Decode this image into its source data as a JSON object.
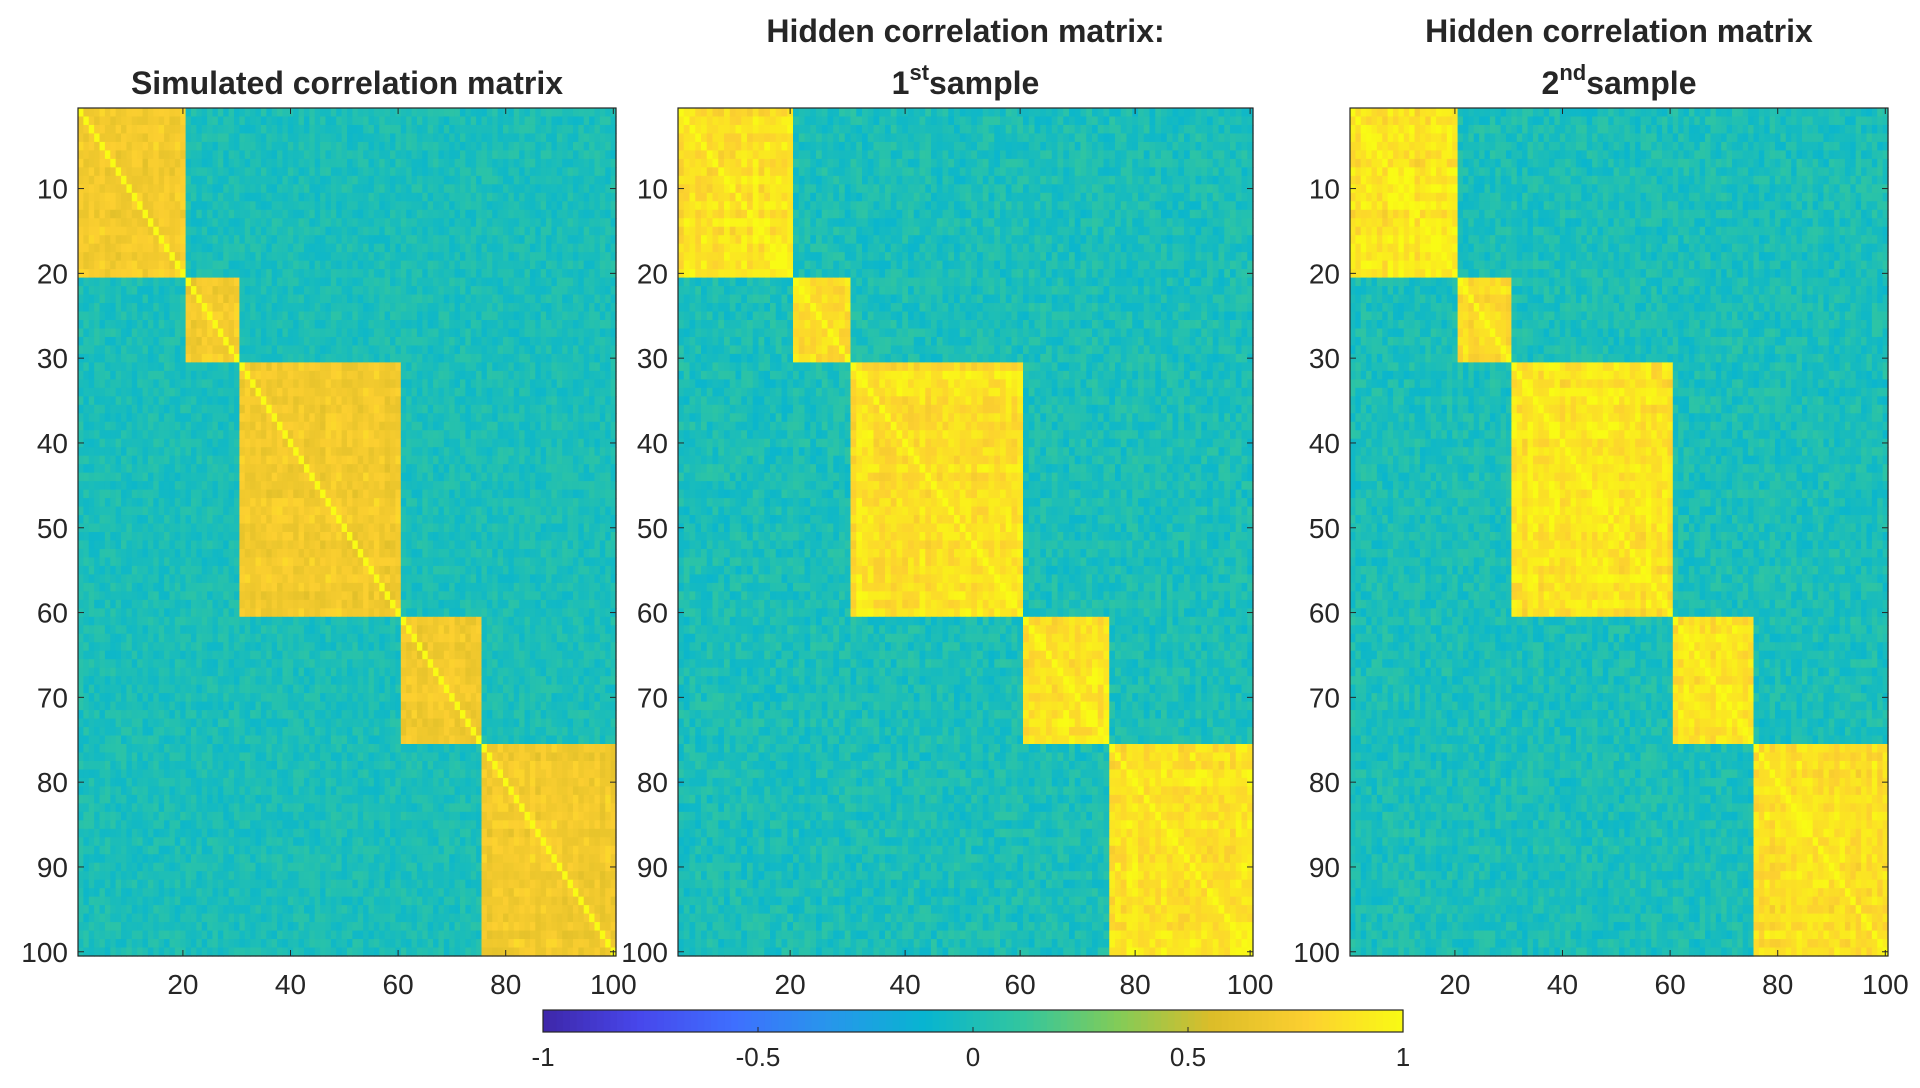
{
  "chart_data": {
    "type": "heatmap",
    "colormap": "parula",
    "matrix_size": 100,
    "clim": [
      -1,
      1
    ],
    "panels": [
      {
        "id": "simulated",
        "title_lines": [
          {
            "text": "Simulated correlation matrix"
          }
        ],
        "ytick_labels": [
          "10",
          "20",
          "30",
          "40",
          "50",
          "60",
          "70",
          "80",
          "90",
          "100"
        ],
        "xtick_labels": [
          "20",
          "40",
          "60",
          "80",
          "100"
        ],
        "blocks": [
          [
            1,
            20
          ],
          [
            21,
            30
          ],
          [
            31,
            60
          ],
          [
            61,
            75
          ],
          [
            76,
            100
          ]
        ],
        "block_strength": 0.72,
        "noise": 0.1
      },
      {
        "id": "hidden-1",
        "title_lines": [
          {
            "text": "Hidden correlation matrix:"
          },
          {
            "prefix": "1",
            "superscript": "st",
            "suffix": "sample"
          }
        ],
        "ytick_labels": [
          "10",
          "20",
          "30",
          "40",
          "50",
          "60",
          "70",
          "80",
          "90",
          "100"
        ],
        "xtick_labels": [
          "20",
          "40",
          "60",
          "80",
          "100"
        ],
        "blocks": [
          [
            1,
            20
          ],
          [
            21,
            30
          ],
          [
            31,
            60
          ],
          [
            61,
            75
          ],
          [
            76,
            100
          ]
        ],
        "block_strength": 0.88,
        "noise": 0.12
      },
      {
        "id": "hidden-2",
        "title_lines": [
          {
            "text": "Hidden correlation matrix"
          },
          {
            "prefix": "2",
            "superscript": "nd",
            "suffix": "sample"
          }
        ],
        "ytick_labels": [
          "10",
          "20",
          "30",
          "40",
          "50",
          "60",
          "70",
          "80",
          "90",
          "100"
        ],
        "xtick_labels": [
          "20",
          "40",
          "60",
          "80",
          "100"
        ],
        "blocks": [
          [
            1,
            20
          ],
          [
            21,
            30
          ],
          [
            31,
            60
          ],
          [
            61,
            75
          ],
          [
            76,
            100
          ]
        ],
        "block_strength": 0.88,
        "noise": 0.12
      }
    ],
    "colorbar": {
      "orientation": "horizontal",
      "range": [
        -1,
        1
      ],
      "tick_labels": [
        "-1",
        "-0.5",
        "0",
        "0.5",
        "1"
      ]
    }
  }
}
